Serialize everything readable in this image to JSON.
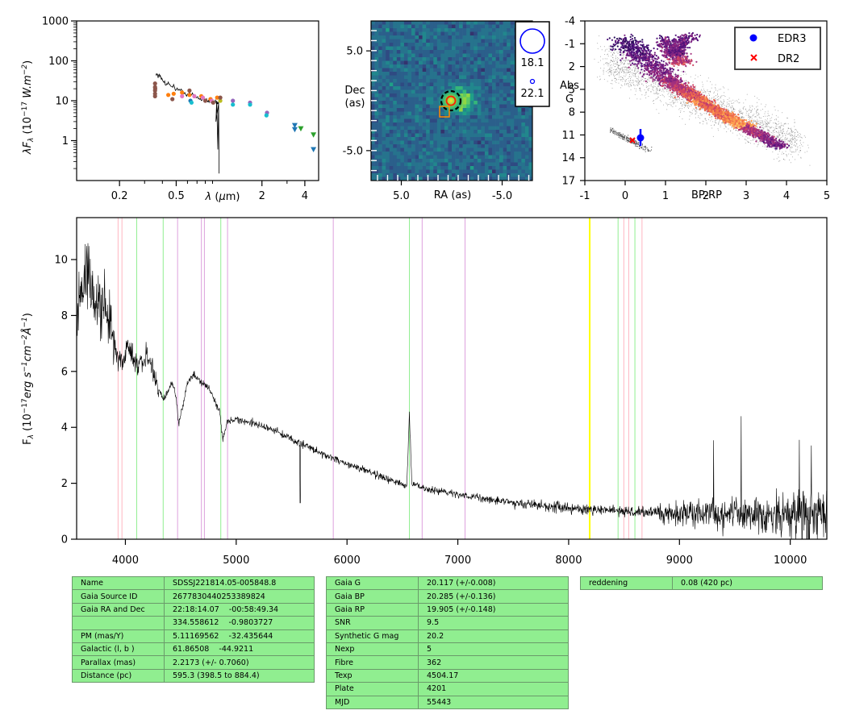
{
  "sed": {
    "xlabel": "λ (μm)",
    "ylabel_pre": "λF",
    "ylabel_sub": "λ",
    "ylabel_post": " (10",
    "ylabel_sup": "−17",
    "ylabel_units": "W.m",
    "ylabel_units_sup": "−2",
    "ylabel_end": ")",
    "x_ticks": [
      {
        "v": 0.2,
        "label": "0.2"
      },
      {
        "v": 0.5,
        "label": "0.5"
      },
      {
        "v": 2,
        "label": "2"
      },
      {
        "v": 4,
        "label": "4"
      }
    ],
    "y_ticks": [
      {
        "v": 1,
        "label": "1"
      },
      {
        "v": 10,
        "label": "10"
      },
      {
        "v": 100,
        "label": "100"
      },
      {
        "v": 1000,
        "label": "1000"
      }
    ]
  },
  "image": {
    "xlabel": "RA (as)",
    "ylabel_1": "Dec",
    "ylabel_2": "(as)",
    "x_ticks": [
      {
        "v": 5,
        "label": "5.0"
      },
      {
        "v": -5,
        "label": "-5.0"
      }
    ],
    "y_ticks": [
      {
        "v": 5,
        "label": "5.0"
      },
      {
        "v": -5,
        "label": "-5.0"
      }
    ],
    "legend": [
      {
        "label": "18.1",
        "mag": 18.1
      },
      {
        "label": "22.1",
        "mag": 22.1
      }
    ]
  },
  "hrd": {
    "xlabel": "BP-RP",
    "ylabel_1": "Abs",
    "ylabel_2": "G",
    "x_ticks": [
      "-1",
      "0",
      "1",
      "2",
      "3",
      "4",
      "5"
    ],
    "y_ticks": [
      "-4",
      "-1",
      "2",
      "5",
      "8",
      "11",
      "14",
      "17"
    ],
    "legend": [
      {
        "label": "EDR3",
        "color": "#0000ff",
        "marker": "circle"
      },
      {
        "label": "DR2",
        "color": "#ff0000",
        "marker": "x"
      }
    ]
  },
  "spectrum": {
    "ylabel_main": "F",
    "ylabel_sub": "λ",
    "ylabel_rest": " (10",
    "ylabel_sup1": "−17",
    "ylabel_mid": "erg s",
    "ylabel_sup2": "−1",
    "ylabel_cm": "cm",
    "ylabel_sup3": "−2",
    "ylabel_A": "Å",
    "ylabel_sup4": "−1",
    "ylabel_end": ")",
    "x_ticks": [
      "4000",
      "5000",
      "6000",
      "7000",
      "8000",
      "9000",
      "10000"
    ],
    "y_ticks": [
      "0",
      "2",
      "4",
      "6",
      "8",
      "10"
    ]
  },
  "tables": {
    "identity": [
      {
        "k": "Name",
        "v": "SDSSJ221814.05-005848.8"
      },
      {
        "k": "Gaia Source ID",
        "v": "2677830440253389824"
      },
      {
        "k": "Gaia RA and Dec",
        "v": "22:18:14.07    -00:58:49.34"
      },
      {
        "k": "",
        "v": "334.558612    -0.9803727"
      },
      {
        "k": "PM (mas/Y)",
        "v": "5.11169562    -32.435644"
      },
      {
        "k": "Galactic (l, b )",
        "v": "61.86508    -44.9211"
      },
      {
        "k": "Parallax (mas)",
        "v": "2.2173 (+/- 0.7060)"
      },
      {
        "k": "Distance (pc)",
        "v": "595.3 (398.5 to 884.4)"
      }
    ],
    "photometry": [
      {
        "k": "Gaia G",
        "v": "20.117 (+/-0.008)"
      },
      {
        "k": "Gaia BP",
        "v": "20.285 (+/-0.136)"
      },
      {
        "k": "Gaia RP",
        "v": "19.905 (+/-0.148)"
      },
      {
        "k": "SNR",
        "v": "9.5"
      },
      {
        "k": "Synthetic G mag",
        "v": "20.2"
      },
      {
        "k": "Nexp",
        "v": "5"
      },
      {
        "k": "Fibre",
        "v": "362"
      },
      {
        "k": "Texp",
        "v": "4504.17"
      },
      {
        "k": "Plate",
        "v": "4201"
      },
      {
        "k": "MJD",
        "v": "55443"
      }
    ],
    "extinction": [
      {
        "k": "reddening",
        "v": "0.08 (420 pc)"
      }
    ]
  },
  "chart_data": [
    {
      "type": "scatter",
      "name": "SED",
      "x_scale": "log",
      "y_scale": "log",
      "xlim": [
        0.1,
        5
      ],
      "ylim": [
        0.1,
        1000
      ],
      "xlabel": "λ (μm)",
      "ylabel": "λFλ (10^-17 W.m^-2)",
      "photometry_points": [
        {
          "x": 0.355,
          "y": 27,
          "color": "#8c564b"
        },
        {
          "x": 0.355,
          "y": 22,
          "color": "#8c564b"
        },
        {
          "x": 0.355,
          "y": 18,
          "color": "#8c564b"
        },
        {
          "x": 0.355,
          "y": 15,
          "color": "#8c564b"
        },
        {
          "x": 0.355,
          "y": 13,
          "color": "#8c564b"
        },
        {
          "x": 0.356,
          "y": 20,
          "color": "#8c564b"
        },
        {
          "x": 0.44,
          "y": 14,
          "color": "#ff7f0e"
        },
        {
          "x": 0.48,
          "y": 15,
          "color": "#ff7f0e"
        },
        {
          "x": 0.47,
          "y": 11,
          "color": "#8c564b"
        },
        {
          "x": 0.55,
          "y": 16,
          "color": "#ff7f0e"
        },
        {
          "x": 0.55,
          "y": 13,
          "color": "#e377c2"
        },
        {
          "x": 0.62,
          "y": 18,
          "color": "#8c564b"
        },
        {
          "x": 0.62,
          "y": 14,
          "color": "#ff7f0e"
        },
        {
          "x": 0.63,
          "y": 10,
          "color": "#1f77b4"
        },
        {
          "x": 0.64,
          "y": 9,
          "color": "#17becf"
        },
        {
          "x": 0.67,
          "y": 13,
          "color": "#e377c2"
        },
        {
          "x": 0.75,
          "y": 13,
          "color": "#ff7f0e"
        },
        {
          "x": 0.77,
          "y": 12,
          "color": "#e377c2"
        },
        {
          "x": 0.8,
          "y": 10,
          "color": "#8c564b"
        },
        {
          "x": 0.87,
          "y": 11,
          "color": "#ff7f0e"
        },
        {
          "x": 0.89,
          "y": 10,
          "color": "#e377c2"
        },
        {
          "x": 0.91,
          "y": 9,
          "color": "#8c564b"
        },
        {
          "x": 0.97,
          "y": 12,
          "color": "#ff7f0e"
        },
        {
          "x": 1.02,
          "y": 10,
          "color": "#bcbd22"
        },
        {
          "x": 1.02,
          "y": 12,
          "color": "#8c564b"
        },
        {
          "x": 1.25,
          "y": 10,
          "color": "#9467bd"
        },
        {
          "x": 1.25,
          "y": 8,
          "color": "#17becf"
        },
        {
          "x": 1.65,
          "y": 9,
          "color": "#9467bd"
        },
        {
          "x": 1.65,
          "y": 8,
          "color": "#17becf"
        },
        {
          "x": 2.17,
          "y": 5,
          "color": "#9467bd"
        },
        {
          "x": 2.15,
          "y": 4.3,
          "color": "#17becf"
        }
      ],
      "upper_limits": [
        {
          "x": 3.4,
          "y": 2.4,
          "color": "#1f77b4"
        },
        {
          "x": 3.4,
          "y": 1.9,
          "color": "#1f77b4"
        },
        {
          "x": 3.75,
          "y": 2.0,
          "color": "#2ca02c"
        },
        {
          "x": 4.6,
          "y": 1.4,
          "color": "#2ca02c"
        },
        {
          "x": 4.6,
          "y": 0.6,
          "color": "#1f77b4"
        }
      ],
      "spectrum_line": [
        {
          "x": 0.36,
          "y": 48
        },
        {
          "x": 0.38,
          "y": 42
        },
        {
          "x": 0.4,
          "y": 33
        },
        {
          "x": 0.43,
          "y": 27
        },
        {
          "x": 0.46,
          "y": 25
        },
        {
          "x": 0.5,
          "y": 20
        },
        {
          "x": 0.55,
          "y": 17
        },
        {
          "x": 0.6,
          "y": 15
        },
        {
          "x": 0.65,
          "y": 14
        },
        {
          "x": 0.7,
          "y": 12
        },
        {
          "x": 0.75,
          "y": 11
        },
        {
          "x": 0.8,
          "y": 11
        },
        {
          "x": 0.85,
          "y": 10
        },
        {
          "x": 0.9,
          "y": 10
        },
        {
          "x": 0.95,
          "y": 9
        },
        {
          "x": 1.0,
          "y": 9
        }
      ]
    },
    {
      "type": "heatmap",
      "name": "image cutout",
      "xlim": [
        8,
        -8
      ],
      "ylim": [
        -8,
        8
      ],
      "xlabel": "RA (as)",
      "ylabel": "Dec (as)",
      "sources": [
        {
          "ra": -1.0,
          "dec": 0.0,
          "mag": 18.1
        }
      ],
      "markers": [
        {
          "type": "dashed-circle",
          "ra": -1.0,
          "dec": 0.0,
          "color": "#000000"
        },
        {
          "type": "circle",
          "ra": -1.0,
          "dec": 0.0,
          "color": "#ff0000"
        },
        {
          "type": "square",
          "ra": 0.8,
          "dec": -1.2,
          "color": "#ff8c00"
        }
      ],
      "legend": [
        {
          "label": "18.1"
        },
        {
          "label": "22.1"
        }
      ]
    },
    {
      "type": "scatter",
      "name": "HRD",
      "xlim": [
        -1,
        5
      ],
      "ylim": [
        17,
        -4
      ],
      "xlabel": "BP-RP",
      "ylabel": "Abs G",
      "series": [
        {
          "name": "EDR3",
          "color": "#0000ff",
          "points": [
            {
              "x": 0.38,
              "y": 11.3
            }
          ],
          "yerr": [
            0.9
          ]
        },
        {
          "name": "DR2",
          "color": "#ff0000",
          "points": [
            {
              "x": 0.18,
              "y": 11.5
            }
          ]
        }
      ]
    },
    {
      "type": "line",
      "name": "spectrum",
      "xlim": [
        3560,
        10330
      ],
      "ylim": [
        0,
        11.5
      ],
      "xlabel": "",
      "ylabel": "Fλ (10^-17 erg s^-1 cm^-2 Å^-1)",
      "flux_outline": [
        {
          "x": 3560,
          "y": 8.0
        },
        {
          "x": 3650,
          "y": 9.5
        },
        {
          "x": 3700,
          "y": 8.6
        },
        {
          "x": 3800,
          "y": 8.0
        },
        {
          "x": 3850,
          "y": 7.8
        },
        {
          "x": 3890,
          "y": 7.2
        },
        {
          "x": 3930,
          "y": 6.4
        },
        {
          "x": 3970,
          "y": 6.3
        },
        {
          "x": 4030,
          "y": 6.9
        },
        {
          "x": 4100,
          "y": 6.2
        },
        {
          "x": 4180,
          "y": 6.5
        },
        {
          "x": 4250,
          "y": 6.1
        },
        {
          "x": 4290,
          "y": 5.5
        },
        {
          "x": 4340,
          "y": 5.0
        },
        {
          "x": 4390,
          "y": 5.3
        },
        {
          "x": 4420,
          "y": 5.6
        },
        {
          "x": 4460,
          "y": 5.0
        },
        {
          "x": 4480,
          "y": 4.1
        },
        {
          "x": 4510,
          "y": 4.6
        },
        {
          "x": 4560,
          "y": 5.6
        },
        {
          "x": 4620,
          "y": 5.9
        },
        {
          "x": 4680,
          "y": 5.6
        },
        {
          "x": 4760,
          "y": 5.4
        },
        {
          "x": 4800,
          "y": 5.0
        },
        {
          "x": 4850,
          "y": 4.6
        },
        {
          "x": 4880,
          "y": 3.5
        },
        {
          "x": 4920,
          "y": 4.2
        },
        {
          "x": 5000,
          "y": 4.3
        },
        {
          "x": 5200,
          "y": 4.1
        },
        {
          "x": 5400,
          "y": 3.8
        },
        {
          "x": 5600,
          "y": 3.4
        },
        {
          "x": 5800,
          "y": 3.0
        },
        {
          "x": 6000,
          "y": 2.7
        },
        {
          "x": 6200,
          "y": 2.4
        },
        {
          "x": 6400,
          "y": 2.1
        },
        {
          "x": 6540,
          "y": 1.9
        },
        {
          "x": 6563,
          "y": 4.5
        },
        {
          "x": 6585,
          "y": 2.0
        },
        {
          "x": 6700,
          "y": 1.8
        },
        {
          "x": 7000,
          "y": 1.6
        },
        {
          "x": 7500,
          "y": 1.3
        },
        {
          "x": 8000,
          "y": 1.1
        },
        {
          "x": 8500,
          "y": 1.0
        },
        {
          "x": 9000,
          "y": 0.9
        },
        {
          "x": 9500,
          "y": 0.9
        },
        {
          "x": 10000,
          "y": 0.9
        },
        {
          "x": 10330,
          "y": 1.0
        }
      ],
      "reference_lines": [
        {
          "x": 3934,
          "color": "#ffb6c1"
        },
        {
          "x": 3969,
          "color": "#ffb6c1"
        },
        {
          "x": 4102,
          "color": "#90ee90"
        },
        {
          "x": 4341,
          "color": "#90ee90"
        },
        {
          "x": 4471,
          "color": "#dda0dd"
        },
        {
          "x": 4686,
          "color": "#dda0dd"
        },
        {
          "x": 4713,
          "color": "#dda0dd"
        },
        {
          "x": 4861,
          "color": "#90ee90"
        },
        {
          "x": 4922,
          "color": "#dda0dd"
        },
        {
          "x": 5876,
          "color": "#dda0dd"
        },
        {
          "x": 6563,
          "color": "#90ee90"
        },
        {
          "x": 6678,
          "color": "#dda0dd"
        },
        {
          "x": 7065,
          "color": "#dda0dd"
        },
        {
          "x": 8190,
          "color": "#ffff00"
        },
        {
          "x": 8446,
          "color": "#90ee90"
        },
        {
          "x": 8498,
          "color": "#ffb6c1"
        },
        {
          "x": 8542,
          "color": "#ffb6c1"
        },
        {
          "x": 8598,
          "color": "#90ee90"
        },
        {
          "x": 8662,
          "color": "#ffb6c1"
        }
      ]
    }
  ]
}
